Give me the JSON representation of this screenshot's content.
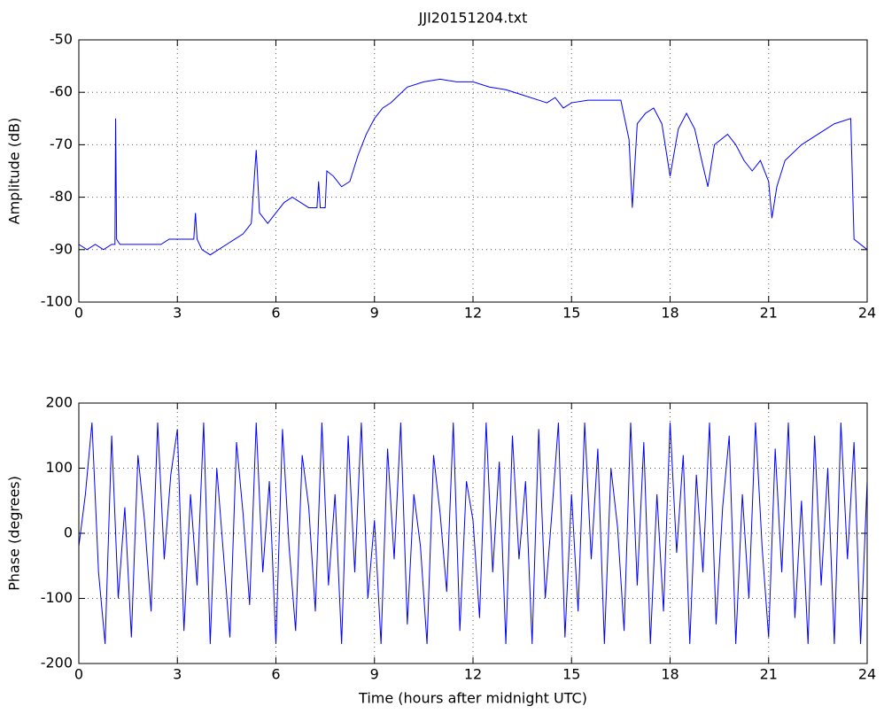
{
  "chart_data": [
    {
      "type": "line",
      "title": "JJI20151204.txt",
      "ylabel": "Amplitude (dB)",
      "color": "#0000ff",
      "grid": true,
      "xlim": [
        0,
        24
      ],
      "xticks": [
        0,
        3,
        6,
        9,
        12,
        15,
        18,
        21,
        24
      ],
      "ylim": [
        -100,
        -50
      ],
      "yticks": [
        -100,
        -90,
        -80,
        -70,
        -60,
        -50
      ],
      "x": [
        0,
        0.25,
        0.5,
        0.75,
        1,
        1.1,
        1.12,
        1.15,
        1.25,
        1.5,
        1.75,
        2,
        2.25,
        2.5,
        2.75,
        3,
        3.25,
        3.5,
        3.55,
        3.6,
        3.75,
        4,
        4.25,
        4.5,
        4.75,
        5,
        5.25,
        5.4,
        5.5,
        5.75,
        6,
        6.25,
        6.5,
        6.75,
        7,
        7.25,
        7.3,
        7.35,
        7.5,
        7.55,
        7.75,
        8,
        8.25,
        8.5,
        8.75,
        9,
        9.25,
        9.5,
        9.75,
        10,
        10.5,
        11,
        11.5,
        12,
        12.5,
        13,
        13.5,
        14,
        14.25,
        14.5,
        14.75,
        15,
        15.5,
        16,
        16.5,
        16.75,
        16.85,
        17,
        17.25,
        17.5,
        17.75,
        18,
        18.25,
        18.5,
        18.75,
        19,
        19.15,
        19.35,
        19.75,
        20,
        20.25,
        20.5,
        20.75,
        21,
        21.1,
        21.25,
        21.5,
        22,
        22.5,
        23,
        23.5,
        23.6,
        24
      ],
      "values": [
        -89,
        -90,
        -89,
        -90,
        -89,
        -89,
        -65,
        -88,
        -89,
        -89,
        -89,
        -89,
        -89,
        -89,
        -88,
        -88,
        -88,
        -88,
        -83,
        -88,
        -90,
        -91,
        -90,
        -89,
        -88,
        -87,
        -85,
        -71,
        -83,
        -85,
        -83,
        -81,
        -80,
        -81,
        -82,
        -82,
        -77,
        -82,
        -82,
        -75,
        -76,
        -78,
        -77,
        -72,
        -68,
        -65,
        -63,
        -62,
        -60.5,
        -59,
        -58,
        -57.5,
        -58,
        -58,
        -59,
        -59.5,
        -60.5,
        -61.5,
        -62,
        -61,
        -63,
        -62,
        -61.5,
        -61.5,
        -61.5,
        -69,
        -82,
        -66,
        -64,
        -63,
        -66,
        -76,
        -67,
        -64,
        -67,
        -74,
        -78,
        -70,
        -68,
        -70,
        -73,
        -75,
        -73,
        -77,
        -84,
        -78,
        -73,
        -70,
        -68,
        -66,
        -65,
        -88,
        -90
      ]
    },
    {
      "type": "line",
      "ylabel": "Phase (degrees)",
      "xlabel": "Time (hours after midnight UTC)",
      "color": "#0000ff",
      "grid": true,
      "xlim": [
        0,
        24
      ],
      "xticks": [
        0,
        3,
        6,
        9,
        12,
        15,
        18,
        21,
        24
      ],
      "ylim": [
        -200,
        200
      ],
      "yticks": [
        -200,
        -100,
        0,
        100,
        200
      ],
      "x": [
        0,
        0.2,
        0.4,
        0.6,
        0.8,
        1,
        1.2,
        1.4,
        1.6,
        1.8,
        2,
        2.2,
        2.4,
        2.6,
        2.8,
        3,
        3.2,
        3.4,
        3.6,
        3.8,
        4,
        4.2,
        4.4,
        4.6,
        4.8,
        5,
        5.2,
        5.4,
        5.6,
        5.8,
        6,
        6.2,
        6.4,
        6.6,
        6.8,
        7,
        7.2,
        7.4,
        7.6,
        7.8,
        8,
        8.2,
        8.4,
        8.6,
        8.8,
        9,
        9.2,
        9.4,
        9.6,
        9.8,
        10,
        10.2,
        10.4,
        10.6,
        10.8,
        11,
        11.2,
        11.4,
        11.6,
        11.8,
        12,
        12.2,
        12.4,
        12.6,
        12.8,
        13,
        13.2,
        13.4,
        13.6,
        13.8,
        14,
        14.2,
        14.4,
        14.6,
        14.8,
        15,
        15.2,
        15.4,
        15.6,
        15.8,
        16,
        16.2,
        16.4,
        16.6,
        16.8,
        17,
        17.2,
        17.4,
        17.6,
        17.8,
        18,
        18.2,
        18.4,
        18.6,
        18.8,
        19,
        19.2,
        19.4,
        19.6,
        19.8,
        20,
        20.2,
        20.4,
        20.6,
        20.8,
        21,
        21.2,
        21.4,
        21.6,
        21.8,
        22,
        22.2,
        22.4,
        22.6,
        22.8,
        23,
        23.2,
        23.4,
        23.6,
        23.8,
        24
      ],
      "values": [
        -20,
        60,
        170,
        -60,
        -170,
        150,
        -100,
        40,
        -160,
        120,
        20,
        -120,
        170,
        -40,
        90,
        160,
        -150,
        60,
        -80,
        170,
        -170,
        100,
        -30,
        -160,
        140,
        30,
        -110,
        170,
        -60,
        80,
        -170,
        160,
        -20,
        -150,
        120,
        40,
        -120,
        170,
        -80,
        60,
        -170,
        150,
        -60,
        170,
        -100,
        20,
        -170,
        130,
        -40,
        170,
        -140,
        60,
        -20,
        -170,
        120,
        30,
        -90,
        170,
        -150,
        80,
        20,
        -130,
        170,
        -60,
        110,
        -170,
        150,
        -40,
        80,
        -170,
        160,
        -100,
        30,
        170,
        -160,
        60,
        -120,
        170,
        -40,
        130,
        -170,
        100,
        10,
        -150,
        170,
        -80,
        140,
        -170,
        60,
        -120,
        170,
        -30,
        120,
        -170,
        90,
        -60,
        170,
        -140,
        40,
        150,
        -170,
        60,
        -100,
        170,
        -20,
        -160,
        130,
        -60,
        170,
        -130,
        50,
        -170,
        150,
        -80,
        100,
        -170,
        170,
        -40,
        140,
        -170,
        80
      ]
    }
  ]
}
